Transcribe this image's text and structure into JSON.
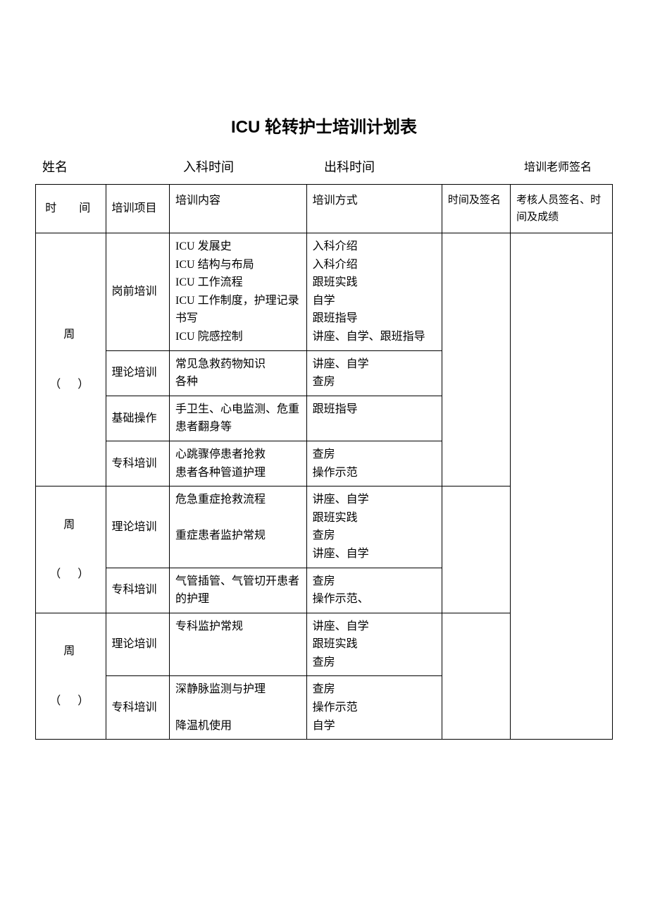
{
  "title": "ICU 轮转护士培训计划表",
  "info": {
    "name_label": "姓名",
    "admit_label": "入科时间",
    "discharge_label": "出科时间",
    "trainer_label": "培训老师签名"
  },
  "headers": {
    "time": "时　间",
    "project": "培训项目",
    "content": "培训内容",
    "method": "培训方式",
    "sign": "时间及签名",
    "assess": "考核人员签名、时间及成绩"
  },
  "week_label": "周",
  "week_paren": "（　）",
  "rows": [
    {
      "project": "岗前培训",
      "content": "ICU 发展史\nICU 结构与布局\nICU 工作流程\nICU 工作制度，护理记录书写\nICU 院感控制",
      "method": "入科介绍\n入科介绍\n跟班实践\n自学\n跟班指导\n讲座、自学、跟班指导"
    },
    {
      "project": "理论培训",
      "content": "常见急救药物知识\n各种",
      "method": "讲座、自学\n查房"
    },
    {
      "project": "基础操作",
      "content": "手卫生、心电监测、危重患者翻身等",
      "method": "跟班指导"
    },
    {
      "project": "专科培训",
      "content": "心跳骤停患者抢救\n患者各种管道护理",
      "method": "查房\n操作示范"
    },
    {
      "project": "理论培训",
      "content": "危急重症抢救流程\n\n重症患者监护常规",
      "method": "讲座、自学\n跟班实践\n查房\n讲座、自学"
    },
    {
      "project": "专科培训",
      "content": "气管插管、气管切开患者的护理",
      "method": "查房\n操作示范、"
    },
    {
      "project": "理论培训",
      "content": "专科监护常规",
      "method": "讲座、自学\n跟班实践\n查房"
    },
    {
      "project": "专科培训",
      "content": "深静脉监测与护理\n\n降温机使用",
      "method": "查房\n操作示范\n自学"
    }
  ]
}
